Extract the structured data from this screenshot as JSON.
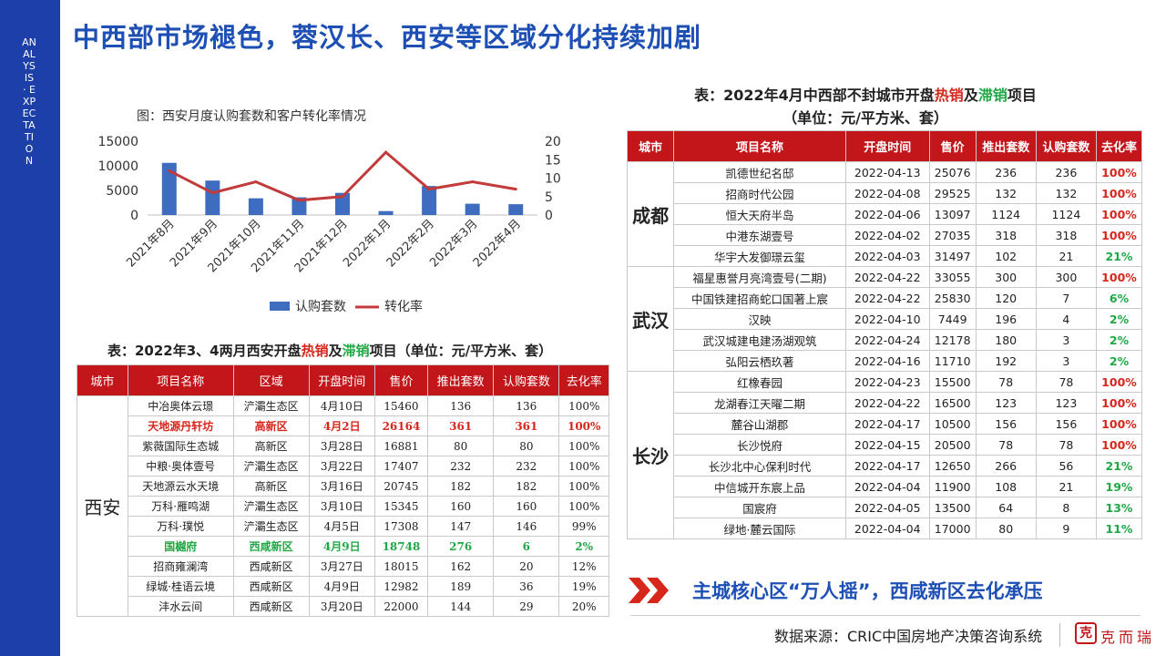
{
  "side_text": "ANALYSIS · EXPECTATION",
  "page_title": "中西部市场褪色，蓉汉长、西安等区域分化持续加剧",
  "chart_data": {
    "type": "bar",
    "title": "图：西安月度认购套数和客户转化率情况",
    "categories": [
      "2021年8月",
      "2021年9月",
      "2021年10月",
      "2021年11月",
      "2021年12月",
      "2022年1月",
      "2022年2月",
      "2022年3月",
      "2022年4月"
    ],
    "series": [
      {
        "name": "认购套数",
        "type": "bar",
        "axis": "left",
        "color": "#3e6cbf",
        "values": [
          10600,
          7000,
          3400,
          3600,
          4500,
          800,
          5900,
          2300,
          2200
        ]
      },
      {
        "name": "转化率",
        "type": "line",
        "axis": "right",
        "color": "#c33a3a",
        "values": [
          12,
          6,
          9,
          4,
          5,
          17,
          7,
          9,
          7
        ]
      }
    ],
    "ylim_left": [
      0,
      15000
    ],
    "yticks_left": [
      "15000",
      "10000",
      "5000",
      "0"
    ],
    "ylim_right": [
      0,
      20
    ],
    "yticks_right": [
      "20",
      "15",
      "10",
      "5",
      "0"
    ],
    "legend_position": "bottom"
  },
  "table1": {
    "title_prefix": "表：2022年3、4两月西安开盘",
    "title_hot": "热销",
    "title_and": "及",
    "title_slow": "滞销",
    "title_suffix": "项目（单位：元/平方米、套）",
    "headers": [
      "城市",
      "项目名称",
      "区域",
      "开盘时间",
      "售价",
      "推出套数",
      "认购套数",
      "去化率"
    ],
    "city": "西安",
    "rows": [
      {
        "name": "中冶奥体云璟",
        "area": "浐灞生态区",
        "date": "4月10日",
        "price": "15460",
        "supply": "136",
        "sold": "136",
        "rate": "100%",
        "style": ""
      },
      {
        "name": "天地源丹轩坊",
        "area": "高新区",
        "date": "4月2日",
        "price": "26164",
        "supply": "361",
        "sold": "361",
        "rate": "100%",
        "style": "hot"
      },
      {
        "name": "紫薇国际生态城",
        "area": "高新区",
        "date": "3月28日",
        "price": "16881",
        "supply": "80",
        "sold": "80",
        "rate": "100%",
        "style": ""
      },
      {
        "name": "中粮·奥体壹号",
        "area": "浐灞生态区",
        "date": "3月22日",
        "price": "17407",
        "supply": "232",
        "sold": "232",
        "rate": "100%",
        "style": ""
      },
      {
        "name": "天地源云水天境",
        "area": "高新区",
        "date": "3月16日",
        "price": "20745",
        "supply": "182",
        "sold": "182",
        "rate": "100%",
        "style": ""
      },
      {
        "name": "万科·雁鸣湖",
        "area": "浐灞生态区",
        "date": "3月10日",
        "price": "15345",
        "supply": "160",
        "sold": "160",
        "rate": "100%",
        "style": ""
      },
      {
        "name": "万科·璞悦",
        "area": "浐灞生态区",
        "date": "4月5日",
        "price": "17308",
        "supply": "147",
        "sold": "146",
        "rate": "99%",
        "style": ""
      },
      {
        "name": "国樾府",
        "area": "西咸新区",
        "date": "4月9日",
        "price": "18748",
        "supply": "276",
        "sold": "6",
        "rate": "2%",
        "style": "slow"
      },
      {
        "name": "招商雍澜湾",
        "area": "西咸新区",
        "date": "3月27日",
        "price": "18015",
        "supply": "162",
        "sold": "20",
        "rate": "12%",
        "style": ""
      },
      {
        "name": "绿城·桂语云境",
        "area": "西咸新区",
        "date": "4月9日",
        "price": "12982",
        "supply": "189",
        "sold": "36",
        "rate": "19%",
        "style": ""
      },
      {
        "name": "沣水云间",
        "area": "西咸新区",
        "date": "3月20日",
        "price": "22000",
        "supply": "144",
        "sold": "29",
        "rate": "20%",
        "style": ""
      }
    ]
  },
  "table2": {
    "title_prefix": "表：2022年4月中西部不封城市开盘",
    "title_hot": "热销",
    "title_and": "及",
    "title_slow": "滞销",
    "title_suffix": "项目",
    "title_line2": "（单位：元/平方米、套）",
    "headers": [
      "城市",
      "项目名称",
      "开盘时间",
      "售价",
      "推出套数",
      "认购套数",
      "去化率"
    ],
    "groups": [
      {
        "city": "成都",
        "rows": [
          {
            "name": "凯德世纪名邸",
            "date": "2022-04-13",
            "price": "25076",
            "supply": "236",
            "sold": "236",
            "rate": "100%",
            "kind": "hot"
          },
          {
            "name": "招商时代公园",
            "date": "2022-04-08",
            "price": "29525",
            "supply": "132",
            "sold": "132",
            "rate": "100%",
            "kind": "hot"
          },
          {
            "name": "恒大天府半岛",
            "date": "2022-04-06",
            "price": "13097",
            "supply": "1124",
            "sold": "1124",
            "rate": "100%",
            "kind": "hot"
          },
          {
            "name": "中港东湖壹号",
            "date": "2022-04-02",
            "price": "27035",
            "supply": "318",
            "sold": "318",
            "rate": "100%",
            "kind": "hot"
          },
          {
            "name": "华宇大发御璟云玺",
            "date": "2022-04-03",
            "price": "31497",
            "supply": "102",
            "sold": "21",
            "rate": "21%",
            "kind": "slow"
          }
        ]
      },
      {
        "city": "武汉",
        "rows": [
          {
            "name": "福星惠誉月亮湾壹号(二期)",
            "date": "2022-04-22",
            "price": "33055",
            "supply": "300",
            "sold": "300",
            "rate": "100%",
            "kind": "hot"
          },
          {
            "name": "中国铁建招商蛇口国著上宸",
            "date": "2022-04-22",
            "price": "25830",
            "supply": "120",
            "sold": "7",
            "rate": "6%",
            "kind": "slow"
          },
          {
            "name": "汉映",
            "date": "2022-04-10",
            "price": "7449",
            "supply": "196",
            "sold": "4",
            "rate": "2%",
            "kind": "slow"
          },
          {
            "name": "武汉城建电建汤湖观筑",
            "date": "2022-04-24",
            "price": "12178",
            "supply": "180",
            "sold": "3",
            "rate": "2%",
            "kind": "slow"
          },
          {
            "name": "弘阳云栖玖著",
            "date": "2022-04-16",
            "price": "11710",
            "supply": "192",
            "sold": "3",
            "rate": "2%",
            "kind": "slow"
          }
        ]
      },
      {
        "city": "长沙",
        "rows": [
          {
            "name": "红橡春园",
            "date": "2022-04-23",
            "price": "15500",
            "supply": "78",
            "sold": "78",
            "rate": "100%",
            "kind": "hot"
          },
          {
            "name": "龙湖春江天曜二期",
            "date": "2022-04-22",
            "price": "16500",
            "supply": "123",
            "sold": "123",
            "rate": "100%",
            "kind": "hot"
          },
          {
            "name": "麓谷山湖郡",
            "date": "2022-04-17",
            "price": "10500",
            "supply": "156",
            "sold": "156",
            "rate": "100%",
            "kind": "hot"
          },
          {
            "name": "长沙悦府",
            "date": "2022-04-15",
            "price": "20500",
            "supply": "78",
            "sold": "78",
            "rate": "100%",
            "kind": "hot"
          },
          {
            "name": "长沙北中心保利时代",
            "date": "2022-04-17",
            "price": "12650",
            "supply": "266",
            "sold": "56",
            "rate": "21%",
            "kind": "slow"
          },
          {
            "name": "中信城开东宸上品",
            "date": "2022-04-04",
            "price": "11900",
            "supply": "108",
            "sold": "21",
            "rate": "19%",
            "kind": "slow"
          },
          {
            "name": "国宸府",
            "date": "2022-04-05",
            "price": "13500",
            "supply": "64",
            "sold": "8",
            "rate": "13%",
            "kind": "slow"
          },
          {
            "name": "绿地·麓云国际",
            "date": "2022-04-04",
            "price": "17000",
            "supply": "80",
            "sold": "9",
            "rate": "11%",
            "kind": "slow"
          }
        ]
      }
    ]
  },
  "conclusion": "主城核心区“万人摇”，西咸新区去化承压",
  "source": "数据来源：CRIC中国房地产决策咨询系统",
  "logo": {
    "mark": "克",
    "name": "克而瑞"
  },
  "colors": {
    "brand_blue": "#1d4fb5",
    "sidebar": "#1d3fa8",
    "table_header": "#c2161a",
    "hot": "#d7261c",
    "slow": "#21a846"
  }
}
